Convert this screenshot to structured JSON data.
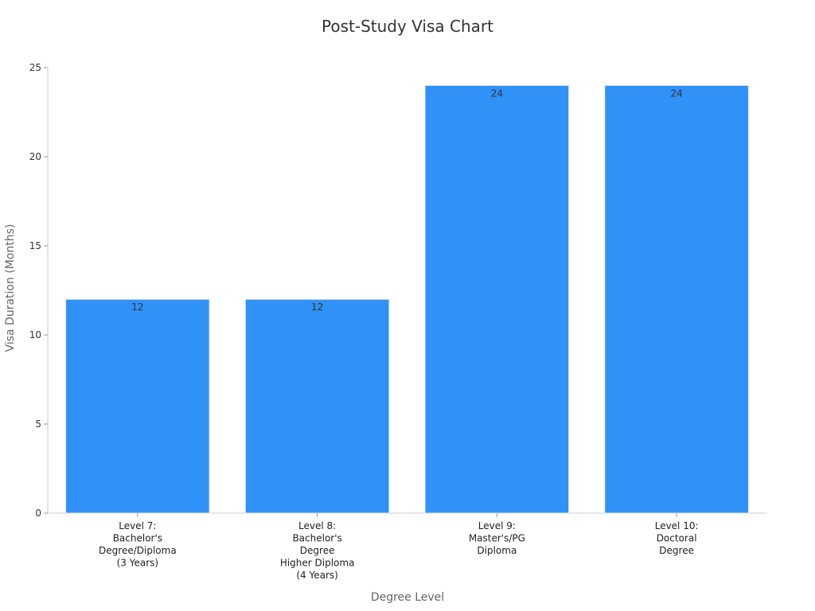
{
  "chart_data": {
    "type": "bar",
    "title": "Post-Study Visa Chart",
    "xlabel": "Degree Level",
    "ylabel": "Visa Duration (Months)",
    "ylim": [
      0,
      25
    ],
    "yticks": [
      0,
      5,
      10,
      15,
      20,
      25
    ],
    "grid": false,
    "categories": [
      [
        "Level 7:",
        "Bachelor's",
        "Degree/Diploma",
        "(3 Years)"
      ],
      [
        "Level 8:",
        "Bachelor's",
        "Degree",
        "Higher Diploma",
        "(4 Years)"
      ],
      [
        "Level 9:",
        "Master's/PG",
        "Diploma"
      ],
      [
        "Level 10:",
        "Doctoral",
        "Degree"
      ]
    ],
    "values": [
      12,
      12,
      24,
      24
    ],
    "bar_color": "#3091f7",
    "bar_edge_color": "#e8eef6"
  }
}
